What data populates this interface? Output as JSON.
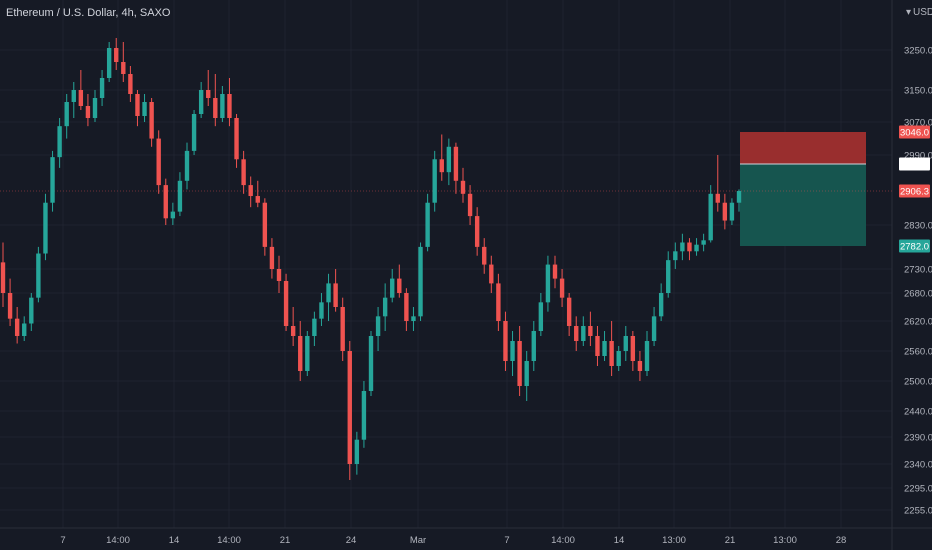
{
  "header": {
    "title": "Ethereum / U.S. Dollar, 4h, SAXO",
    "currency": "USD"
  },
  "colors": {
    "up": "#26a69a",
    "down": "#ef5350",
    "stop": "#992e2e",
    "target": "#16554f",
    "background": "#161a25",
    "grid": "#1f2330"
  },
  "chart_data": {
    "type": "candlestick",
    "y_ticks": [
      "3250.0",
      "3150.0",
      "3070.0",
      "2990.0",
      "2830.0",
      "2730.0",
      "2680.0",
      "2620.0",
      "2560.0",
      "2500.0",
      "2440.0",
      "2390.0",
      "2340.0",
      "2295.0",
      "2255.0"
    ],
    "x_ticks": [
      "7",
      "14:00",
      "14",
      "14:00",
      "21",
      "24",
      "Mar",
      "7",
      "14:00",
      "14",
      "13:00",
      "21",
      "13:00",
      "28"
    ],
    "price_tags": {
      "stop": "3046.0",
      "entry": "2969.0",
      "current": "2906.3",
      "target": "2782.0"
    },
    "series": [
      {
        "o": 2745,
        "h": 2790,
        "l": 2650,
        "c": 2680
      },
      {
        "o": 2680,
        "h": 2710,
        "l": 2610,
        "c": 2625
      },
      {
        "o": 2625,
        "h": 2650,
        "l": 2575,
        "c": 2590
      },
      {
        "o": 2590,
        "h": 2630,
        "l": 2580,
        "c": 2615
      },
      {
        "o": 2615,
        "h": 2680,
        "l": 2600,
        "c": 2670
      },
      {
        "o": 2670,
        "h": 2780,
        "l": 2660,
        "c": 2765
      },
      {
        "o": 2765,
        "h": 2900,
        "l": 2750,
        "c": 2880
      },
      {
        "o": 2880,
        "h": 3000,
        "l": 2860,
        "c": 2985
      },
      {
        "o": 2985,
        "h": 3080,
        "l": 2960,
        "c": 3060
      },
      {
        "o": 3060,
        "h": 3140,
        "l": 3030,
        "c": 3120
      },
      {
        "o": 3120,
        "h": 3170,
        "l": 3080,
        "c": 3150
      },
      {
        "o": 3150,
        "h": 3200,
        "l": 3100,
        "c": 3110
      },
      {
        "o": 3110,
        "h": 3140,
        "l": 3060,
        "c": 3080
      },
      {
        "o": 3080,
        "h": 3150,
        "l": 3070,
        "c": 3130
      },
      {
        "o": 3130,
        "h": 3200,
        "l": 3110,
        "c": 3180
      },
      {
        "o": 3180,
        "h": 3270,
        "l": 3170,
        "c": 3255
      },
      {
        "o": 3255,
        "h": 3280,
        "l": 3200,
        "c": 3220
      },
      {
        "o": 3220,
        "h": 3270,
        "l": 3170,
        "c": 3190
      },
      {
        "o": 3190,
        "h": 3210,
        "l": 3120,
        "c": 3140
      },
      {
        "o": 3140,
        "h": 3150,
        "l": 3060,
        "c": 3085
      },
      {
        "o": 3085,
        "h": 3140,
        "l": 3070,
        "c": 3120
      },
      {
        "o": 3120,
        "h": 3130,
        "l": 3010,
        "c": 3030
      },
      {
        "o": 3030,
        "h": 3050,
        "l": 2900,
        "c": 2920
      },
      {
        "o": 2920,
        "h": 2935,
        "l": 2830,
        "c": 2845
      },
      {
        "o": 2845,
        "h": 2880,
        "l": 2830,
        "c": 2860
      },
      {
        "o": 2860,
        "h": 2950,
        "l": 2850,
        "c": 2930
      },
      {
        "o": 2930,
        "h": 3020,
        "l": 2910,
        "c": 3000
      },
      {
        "o": 3000,
        "h": 3100,
        "l": 2990,
        "c": 3090
      },
      {
        "o": 3090,
        "h": 3170,
        "l": 3080,
        "c": 3150
      },
      {
        "o": 3150,
        "h": 3200,
        "l": 3110,
        "c": 3130
      },
      {
        "o": 3130,
        "h": 3190,
        "l": 3060,
        "c": 3080
      },
      {
        "o": 3080,
        "h": 3160,
        "l": 3070,
        "c": 3140
      },
      {
        "o": 3140,
        "h": 3180,
        "l": 3060,
        "c": 3080
      },
      {
        "o": 3080,
        "h": 3090,
        "l": 2960,
        "c": 2980
      },
      {
        "o": 2980,
        "h": 3000,
        "l": 2900,
        "c": 2920
      },
      {
        "o": 2920,
        "h": 2940,
        "l": 2870,
        "c": 2895
      },
      {
        "o": 2895,
        "h": 2930,
        "l": 2870,
        "c": 2880
      },
      {
        "o": 2880,
        "h": 2890,
        "l": 2760,
        "c": 2780
      },
      {
        "o": 2780,
        "h": 2800,
        "l": 2710,
        "c": 2730
      },
      {
        "o": 2730,
        "h": 2760,
        "l": 2680,
        "c": 2705
      },
      {
        "o": 2705,
        "h": 2720,
        "l": 2600,
        "c": 2610
      },
      {
        "o": 2610,
        "h": 2650,
        "l": 2570,
        "c": 2590
      },
      {
        "o": 2590,
        "h": 2620,
        "l": 2500,
        "c": 2520
      },
      {
        "o": 2520,
        "h": 2600,
        "l": 2510,
        "c": 2590
      },
      {
        "o": 2590,
        "h": 2640,
        "l": 2570,
        "c": 2625
      },
      {
        "o": 2625,
        "h": 2680,
        "l": 2610,
        "c": 2660
      },
      {
        "o": 2660,
        "h": 2720,
        "l": 2620,
        "c": 2700
      },
      {
        "o": 2700,
        "h": 2730,
        "l": 2640,
        "c": 2650
      },
      {
        "o": 2650,
        "h": 2670,
        "l": 2540,
        "c": 2560
      },
      {
        "o": 2560,
        "h": 2580,
        "l": 2310,
        "c": 2340
      },
      {
        "o": 2340,
        "h": 2400,
        "l": 2320,
        "c": 2385
      },
      {
        "o": 2385,
        "h": 2500,
        "l": 2370,
        "c": 2480
      },
      {
        "o": 2480,
        "h": 2600,
        "l": 2470,
        "c": 2590
      },
      {
        "o": 2590,
        "h": 2650,
        "l": 2560,
        "c": 2630
      },
      {
        "o": 2630,
        "h": 2700,
        "l": 2600,
        "c": 2670
      },
      {
        "o": 2670,
        "h": 2730,
        "l": 2660,
        "c": 2710
      },
      {
        "o": 2710,
        "h": 2740,
        "l": 2670,
        "c": 2680
      },
      {
        "o": 2680,
        "h": 2690,
        "l": 2600,
        "c": 2620
      },
      {
        "o": 2620,
        "h": 2650,
        "l": 2600,
        "c": 2630
      },
      {
        "o": 2630,
        "h": 2790,
        "l": 2620,
        "c": 2780
      },
      {
        "o": 2780,
        "h": 2900,
        "l": 2770,
        "c": 2880
      },
      {
        "o": 2880,
        "h": 3000,
        "l": 2860,
        "c": 2980
      },
      {
        "o": 2980,
        "h": 3040,
        "l": 2930,
        "c": 2950
      },
      {
        "o": 2950,
        "h": 3030,
        "l": 2920,
        "c": 3010
      },
      {
        "o": 3010,
        "h": 3020,
        "l": 2900,
        "c": 2930
      },
      {
        "o": 2930,
        "h": 2960,
        "l": 2880,
        "c": 2900
      },
      {
        "o": 2900,
        "h": 2920,
        "l": 2830,
        "c": 2850
      },
      {
        "o": 2850,
        "h": 2870,
        "l": 2760,
        "c": 2780
      },
      {
        "o": 2780,
        "h": 2800,
        "l": 2720,
        "c": 2740
      },
      {
        "o": 2740,
        "h": 2760,
        "l": 2680,
        "c": 2700
      },
      {
        "o": 2700,
        "h": 2720,
        "l": 2600,
        "c": 2620
      },
      {
        "o": 2620,
        "h": 2640,
        "l": 2520,
        "c": 2540
      },
      {
        "o": 2540,
        "h": 2600,
        "l": 2510,
        "c": 2580
      },
      {
        "o": 2580,
        "h": 2610,
        "l": 2470,
        "c": 2490
      },
      {
        "o": 2490,
        "h": 2560,
        "l": 2460,
        "c": 2540
      },
      {
        "o": 2540,
        "h": 2620,
        "l": 2520,
        "c": 2600
      },
      {
        "o": 2600,
        "h": 2680,
        "l": 2590,
        "c": 2660
      },
      {
        "o": 2660,
        "h": 2760,
        "l": 2640,
        "c": 2740
      },
      {
        "o": 2740,
        "h": 2760,
        "l": 2690,
        "c": 2710
      },
      {
        "o": 2710,
        "h": 2730,
        "l": 2650,
        "c": 2670
      },
      {
        "o": 2670,
        "h": 2680,
        "l": 2590,
        "c": 2610
      },
      {
        "o": 2610,
        "h": 2630,
        "l": 2560,
        "c": 2580
      },
      {
        "o": 2580,
        "h": 2630,
        "l": 2570,
        "c": 2610
      },
      {
        "o": 2610,
        "h": 2640,
        "l": 2570,
        "c": 2590
      },
      {
        "o": 2590,
        "h": 2610,
        "l": 2530,
        "c": 2550
      },
      {
        "o": 2550,
        "h": 2600,
        "l": 2540,
        "c": 2580
      },
      {
        "o": 2580,
        "h": 2620,
        "l": 2510,
        "c": 2530
      },
      {
        "o": 2530,
        "h": 2570,
        "l": 2520,
        "c": 2560
      },
      {
        "o": 2560,
        "h": 2610,
        "l": 2540,
        "c": 2590
      },
      {
        "o": 2590,
        "h": 2600,
        "l": 2520,
        "c": 2540
      },
      {
        "o": 2540,
        "h": 2560,
        "l": 2500,
        "c": 2520
      },
      {
        "o": 2520,
        "h": 2600,
        "l": 2510,
        "c": 2580
      },
      {
        "o": 2580,
        "h": 2650,
        "l": 2570,
        "c": 2630
      },
      {
        "o": 2630,
        "h": 2700,
        "l": 2620,
        "c": 2680
      },
      {
        "o": 2680,
        "h": 2770,
        "l": 2670,
        "c": 2750
      },
      {
        "o": 2750,
        "h": 2790,
        "l": 2730,
        "c": 2770
      },
      {
        "o": 2770,
        "h": 2810,
        "l": 2750,
        "c": 2790
      },
      {
        "o": 2790,
        "h": 2800,
        "l": 2750,
        "c": 2770
      },
      {
        "o": 2770,
        "h": 2800,
        "l": 2760,
        "c": 2785
      },
      {
        "o": 2785,
        "h": 2810,
        "l": 2770,
        "c": 2795
      },
      {
        "o": 2795,
        "h": 2920,
        "l": 2790,
        "c": 2900
      },
      {
        "o": 2900,
        "h": 2990,
        "l": 2860,
        "c": 2880
      },
      {
        "o": 2880,
        "h": 2900,
        "l": 2820,
        "c": 2840
      },
      {
        "o": 2840,
        "h": 2890,
        "l": 2830,
        "c": 2880
      },
      {
        "o": 2880,
        "h": 2910,
        "l": 2860,
        "c": 2906.3
      }
    ]
  }
}
